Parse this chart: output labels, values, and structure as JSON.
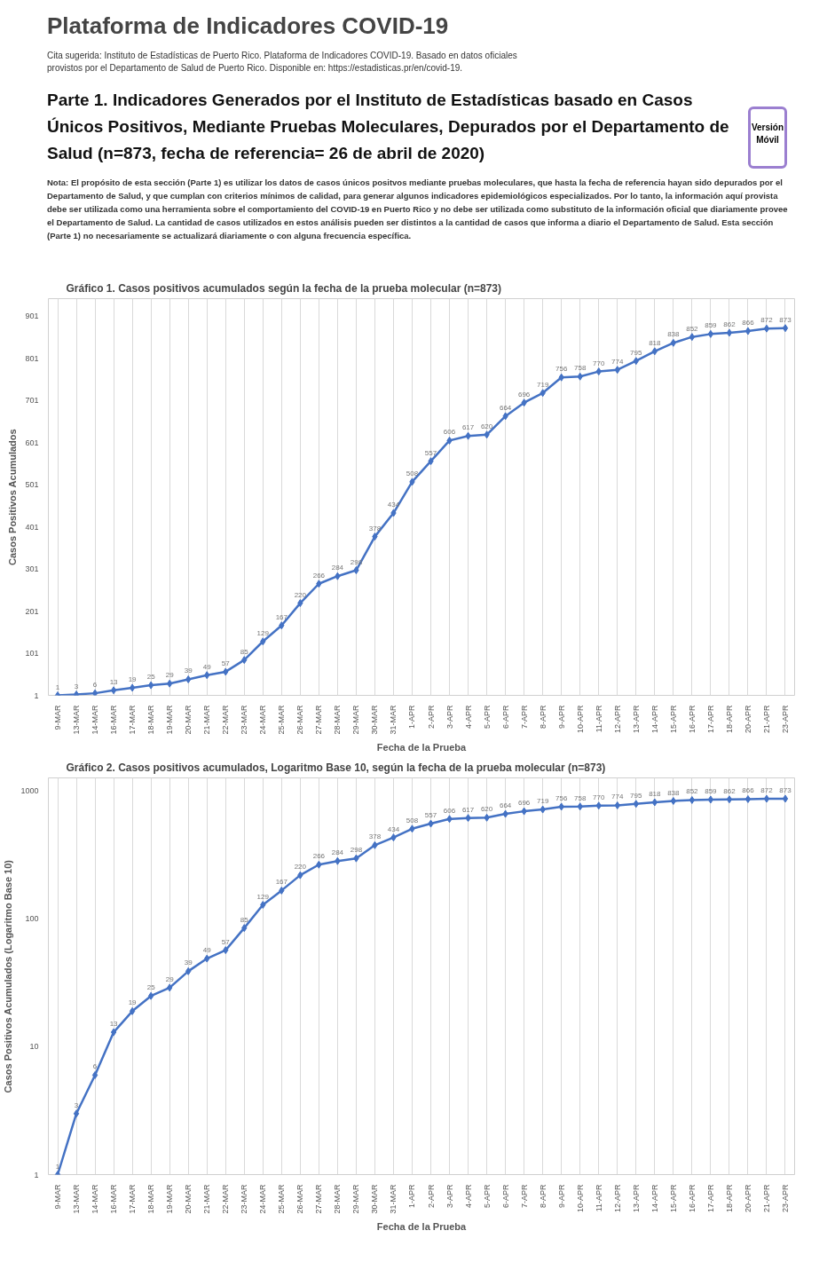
{
  "chart_data": [
    {
      "type": "other",
      "title": "Plataforma de Indicadores COVID-19",
      "subtitle": "Cita sugerida: Instituto de Estadísticas de Puerto Rico.  Plataforma de Indicadores COVID-19.  Basado en datos oficiales provistos por el Departamento de Salud de Puerto Rico. Disponible en: https://estadisticas.pr/en/covid-19.",
      "annotations": [
        "Parte 1. Indicadores Generados por el Instituto de Estadísticas basado en Casos Únicos Positivos, Mediante Pruebas Moleculares, Depurados por el Departamento de Salud (n=873, fecha de referencia= 26 de abril de 2020)",
        "Versión Móvil",
        "Nota: El propósito de esta sección (Parte 1) es utilizar los datos de casos únicos positvos mediante pruebas moleculares, que hasta la fecha de referencia hayan sido depurados por el Departamento de Salud, y que cumplan con criterios mínimos de calidad, para generar algunos indicadores epidemiológicos especializados.  Por lo tanto, la información aquí provista debe ser utilizada como una herramienta sobre el comportamiento del COVID-19 en Puerto Rico y no debe ser utilizada como substituto de la información oficial que diariamente provee el Departamento de Salud. La cantidad de casos utilizados en estos análisis pueden ser distintos a la cantidad de casos que informa a diario el Departamento de Salud.  Esta sección (Parte 1) no necesariamente se actualizará diariamente o con alguna frecuencia específica."
      ]
    },
    {
      "type": "line",
      "title": "Gráfico 1. Casos positivos acumulados según la fecha de la prueba molecular (n=873)",
      "xlabel": "Fecha de la Prueba",
      "ylabel": "Casos Positivos Acumulados",
      "categories": [
        "9-MAR",
        "13-MAR",
        "14-MAR",
        "16-MAR",
        "17-MAR",
        "18-MAR",
        "19-MAR",
        "20-MAR",
        "21-MAR",
        "22-MAR",
        "23-MAR",
        "24-MAR",
        "25-MAR",
        "26-MAR",
        "27-MAR",
        "28-MAR",
        "29-MAR",
        "30-MAR",
        "31-MAR",
        "1-APR",
        "2-APR",
        "3-APR",
        "4-APR",
        "5-APR",
        "6-APR",
        "7-APR",
        "8-APR",
        "9-APR",
        "10-APR",
        "11-APR",
        "12-APR",
        "13-APR",
        "14-APR",
        "15-APR",
        "16-APR",
        "17-APR",
        "18-APR",
        "20-APR",
        "21-APR",
        "23-APR"
      ],
      "series": [
        {
          "color": "#4472c4",
          "values": [
            1,
            3,
            6,
            13,
            19,
            25,
            29,
            39,
            49,
            57,
            85,
            129,
            167,
            220,
            266,
            284,
            298,
            378,
            434,
            508,
            557,
            606,
            617,
            620,
            664,
            696,
            719,
            756,
            758,
            770,
            774,
            795,
            818,
            838,
            852,
            859,
            862,
            866,
            872,
            873
          ]
        }
      ],
      "ylim": [
        1,
        943
      ],
      "yticks": [
        1,
        101,
        201,
        301,
        401,
        501,
        601,
        701,
        801,
        901
      ],
      "grid": "x",
      "marker": "diamond",
      "line_style": "solid",
      "data_labels": true
    },
    {
      "type": "line",
      "title": "Gráfico 2. Casos positivos acumulados, Logaritmo Base 10, según la fecha de la prueba molecular (n=873)",
      "xlabel": "Fecha de la Prueba",
      "ylabel": "Casos Positivos Acumulados (Logaritmo Base 10)",
      "categories": [
        "9-MAR",
        "13-MAR",
        "14-MAR",
        "16-MAR",
        "17-MAR",
        "18-MAR",
        "19-MAR",
        "20-MAR",
        "21-MAR",
        "22-MAR",
        "23-MAR",
        "24-MAR",
        "25-MAR",
        "26-MAR",
        "27-MAR",
        "28-MAR",
        "29-MAR",
        "30-MAR",
        "31-MAR",
        "1-APR",
        "2-APR",
        "3-APR",
        "4-APR",
        "5-APR",
        "6-APR",
        "7-APR",
        "8-APR",
        "9-APR",
        "10-APR",
        "11-APR",
        "12-APR",
        "13-APR",
        "14-APR",
        "15-APR",
        "16-APR",
        "17-APR",
        "18-APR",
        "20-APR",
        "21-APR",
        "23-APR"
      ],
      "series": [
        {
          "color": "#4472c4",
          "values": [
            1,
            3,
            6,
            13,
            19,
            25,
            29,
            39,
            49,
            57,
            85,
            129,
            167,
            220,
            266,
            284,
            298,
            378,
            434,
            508,
            557,
            606,
            617,
            620,
            664,
            696,
            719,
            756,
            758,
            770,
            774,
            795,
            818,
            838,
            852,
            859,
            862,
            866,
            872,
            873
          ]
        }
      ],
      "ylim": [
        1,
        1270
      ],
      "yticks": [
        1,
        10,
        100,
        1000
      ],
      "log": true,
      "grid": "x",
      "marker": "diamond",
      "line_style": "solid",
      "data_labels": true
    }
  ]
}
